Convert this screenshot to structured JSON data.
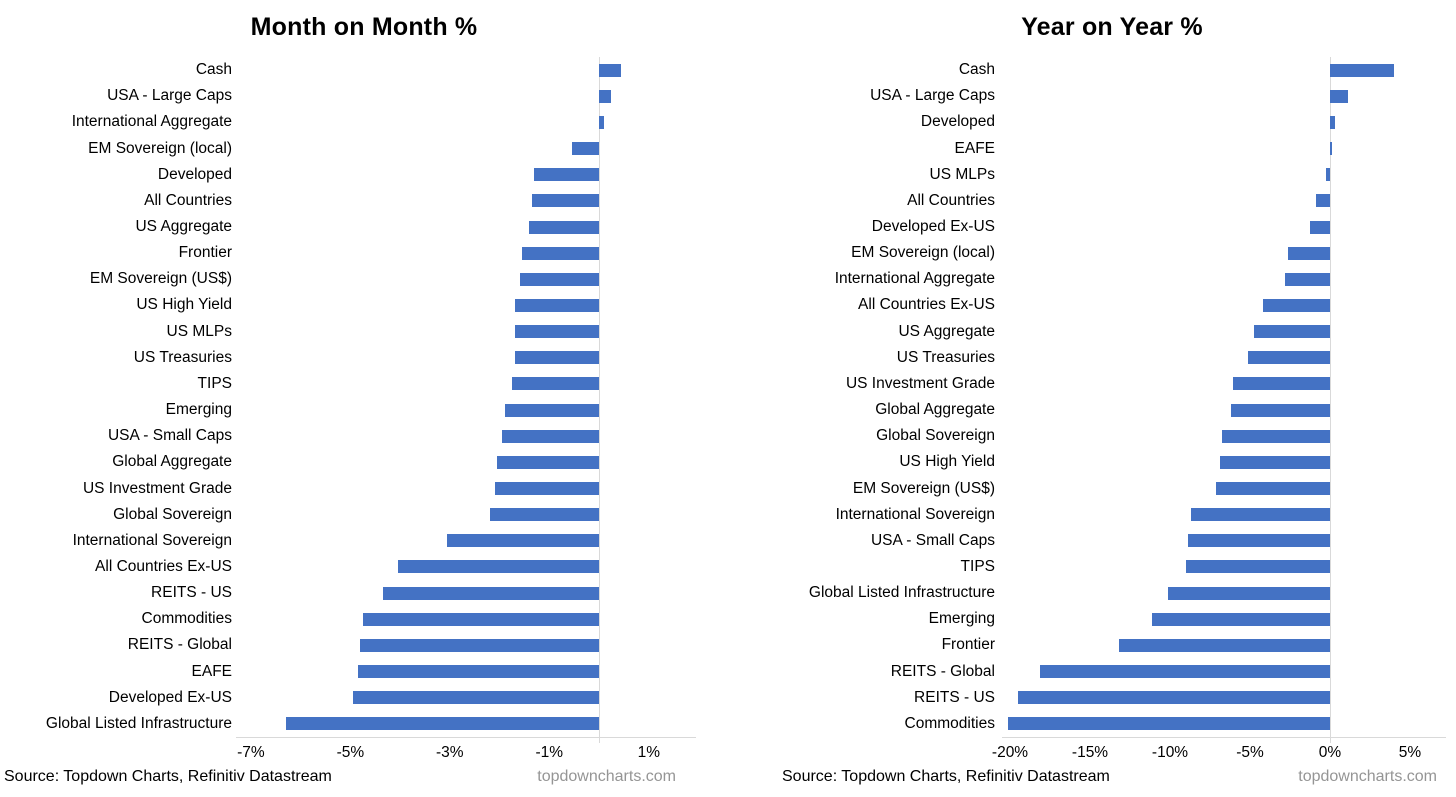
{
  "chart_data": [
    {
      "id": "mom",
      "type": "bar",
      "orientation": "horizontal",
      "title": "Month on Month %",
      "categories": [
        "Cash",
        "USA - Large Caps",
        "International Aggregate",
        "EM Sovereign (local)",
        "Developed",
        "All Countries",
        "US Aggregate",
        "Frontier",
        "EM Sovereign (US$)",
        "US High Yield",
        "US MLPs",
        "US Treasuries",
        "TIPS",
        "Emerging",
        "USA - Small Caps",
        "Global Aggregate",
        "US Investment Grade",
        "Global Sovereign",
        "International Sovereign",
        "All Countries Ex-US",
        "REITS - US",
        "Commodities",
        "REITS - Global",
        "EAFE",
        "Developed Ex-US",
        "Global Listed Infrastructure"
      ],
      "values": [
        0.45,
        0.25,
        0.1,
        -0.55,
        -1.3,
        -1.35,
        -1.4,
        -1.55,
        -1.6,
        -1.7,
        -1.7,
        -1.7,
        -1.75,
        -1.9,
        -1.95,
        -2.05,
        -2.1,
        -2.2,
        -3.05,
        -4.05,
        -4.35,
        -4.75,
        -4.8,
        -4.85,
        -4.95,
        -6.3
      ],
      "xlim": [
        -7.3,
        1.95
      ],
      "ticks": [
        {
          "value": -7,
          "label": "-7%"
        },
        {
          "value": -5,
          "label": "-5%"
        },
        {
          "value": -3,
          "label": "-3%"
        },
        {
          "value": -1,
          "label": "-1%"
        },
        {
          "value": 1,
          "label": "1%"
        }
      ],
      "grid": false,
      "legend": "none"
    },
    {
      "id": "yoy",
      "type": "bar",
      "orientation": "horizontal",
      "title": "Year on Year %",
      "categories": [
        "Cash",
        "USA - Large Caps",
        "Developed",
        "EAFE",
        "US MLPs",
        "All Countries",
        "Developed Ex-US",
        "EM Sovereign (local)",
        "International Aggregate",
        "All Countries Ex-US",
        "US Aggregate",
        "US Treasuries",
        "US Investment Grade",
        "Global Aggregate",
        "Global Sovereign",
        "US High Yield",
        "EM Sovereign (US$)",
        "International Sovereign",
        "USA - Small Caps",
        "TIPS",
        "Global Listed Infrastructure",
        "Emerging",
        "Frontier",
        "REITS - Global",
        "REITS - US",
        "Commodities"
      ],
      "values": [
        4.0,
        1.1,
        0.3,
        0.15,
        -0.25,
        -0.9,
        -1.25,
        -2.6,
        -2.8,
        -4.2,
        -4.75,
        -5.1,
        -6.05,
        -6.2,
        -6.75,
        -6.9,
        -7.1,
        -8.7,
        -8.9,
        -9.0,
        -10.1,
        -11.1,
        -13.2,
        -18.1,
        -19.5,
        -20.1
      ],
      "xlim": [
        -20.5,
        7.25
      ],
      "ticks": [
        {
          "value": -20,
          "label": "-20%"
        },
        {
          "value": -15,
          "label": "-15%"
        },
        {
          "value": -10,
          "label": "-10%"
        },
        {
          "value": -5,
          "label": "-5%"
        },
        {
          "value": 0,
          "label": "0%"
        },
        {
          "value": 5,
          "label": "5%"
        }
      ],
      "grid": false,
      "legend": "none"
    }
  ],
  "footer": {
    "source": "Source: Topdown Charts, Refinitiv Datastream",
    "site": "topdowncharts.com"
  },
  "colors": {
    "bar": "#4472C4",
    "axis": "#D9D9D9",
    "site_text": "#959595"
  }
}
